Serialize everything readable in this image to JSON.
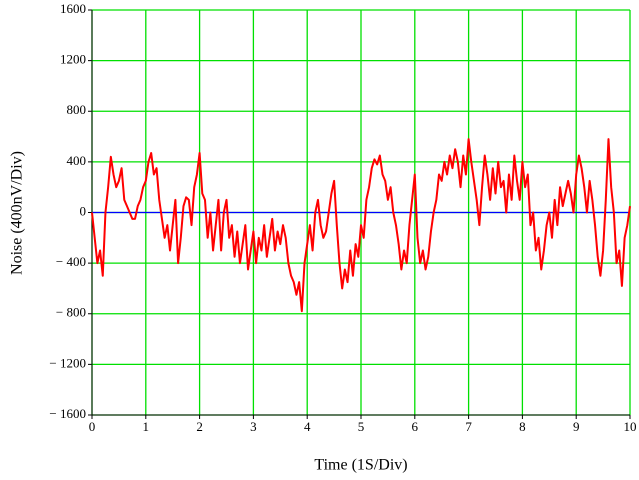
{
  "chart_data": {
    "type": "line",
    "xlabel": "Time (1S/Div)",
    "ylabel": "Noise (400nV/Div)",
    "xlim": [
      0,
      10
    ],
    "xticks": [
      0,
      1,
      2,
      3,
      4,
      5,
      6,
      7,
      8,
      9,
      10
    ],
    "ylim": [
      -1600,
      1600
    ],
    "yticks": [
      {
        "value": -1600,
        "label": "− 1600"
      },
      {
        "value": -1200,
        "label": "− 1200"
      },
      {
        "value": -800,
        "label": "− 800"
      },
      {
        "value": -400,
        "label": "− 400"
      },
      0,
      400,
      800,
      1200,
      1600
    ],
    "grid": true,
    "grid_color": "#00e000",
    "hline": {
      "value": 0,
      "color": "#0000ff"
    },
    "x": [
      0,
      0.05,
      0.1,
      0.15,
      0.2,
      0.25,
      0.3,
      0.35,
      0.4,
      0.45,
      0.5,
      0.55,
      0.6,
      0.65,
      0.7,
      0.75,
      0.8,
      0.85,
      0.9,
      0.95,
      1,
      1.05,
      1.1,
      1.15,
      1.2,
      1.25,
      1.3,
      1.35,
      1.4,
      1.45,
      1.5,
      1.55,
      1.6,
      1.65,
      1.7,
      1.75,
      1.8,
      1.85,
      1.9,
      1.95,
      2,
      2.05,
      2.1,
      2.15,
      2.2,
      2.25,
      2.3,
      2.35,
      2.4,
      2.45,
      2.5,
      2.55,
      2.6,
      2.65,
      2.7,
      2.75,
      2.8,
      2.85,
      2.9,
      2.95,
      3,
      3.05,
      3.1,
      3.15,
      3.2,
      3.25,
      3.3,
      3.35,
      3.4,
      3.45,
      3.5,
      3.55,
      3.6,
      3.65,
      3.7,
      3.75,
      3.8,
      3.85,
      3.9,
      3.95,
      4,
      4.05,
      4.1,
      4.15,
      4.2,
      4.25,
      4.3,
      4.35,
      4.4,
      4.45,
      4.5,
      4.55,
      4.6,
      4.65,
      4.7,
      4.75,
      4.8,
      4.85,
      4.9,
      4.95,
      5,
      5.05,
      5.1,
      5.15,
      5.2,
      5.25,
      5.3,
      5.35,
      5.4,
      5.45,
      5.5,
      5.55,
      5.6,
      5.65,
      5.7,
      5.75,
      5.8,
      5.85,
      5.9,
      5.95,
      6,
      6.05,
      6.1,
      6.15,
      6.2,
      6.25,
      6.3,
      6.35,
      6.4,
      6.45,
      6.5,
      6.55,
      6.6,
      6.65,
      6.7,
      6.75,
      6.8,
      6.85,
      6.9,
      6.95,
      7,
      7.05,
      7.1,
      7.15,
      7.2,
      7.25,
      7.3,
      7.35,
      7.4,
      7.45,
      7.5,
      7.55,
      7.6,
      7.65,
      7.7,
      7.75,
      7.8,
      7.85,
      7.9,
      7.95,
      8,
      8.05,
      8.1,
      8.15,
      8.2,
      8.25,
      8.3,
      8.35,
      8.4,
      8.45,
      8.5,
      8.55,
      8.6,
      8.65,
      8.7,
      8.75,
      8.8,
      8.85,
      8.9,
      8.95,
      9,
      9.05,
      9.1,
      9.15,
      9.2,
      9.25,
      9.3,
      9.35,
      9.4,
      9.45,
      9.5,
      9.55,
      9.6,
      9.65,
      9.7,
      9.75,
      9.8,
      9.85,
      9.9,
      9.95,
      10
    ],
    "series": [
      {
        "name": "Noise",
        "color": "#ff0000",
        "values": [
          0,
          -200,
          -400,
          -300,
          -500,
          0,
          200,
          440,
          300,
          200,
          250,
          350,
          100,
          50,
          0,
          -50,
          -50,
          50,
          100,
          200,
          250,
          400,
          470,
          300,
          350,
          100,
          -50,
          -200,
          -100,
          -300,
          -100,
          100,
          -400,
          -200,
          50,
          120,
          100,
          -100,
          200,
          300,
          470,
          150,
          100,
          -200,
          0,
          -300,
          -100,
          100,
          -300,
          0,
          100,
          -200,
          -100,
          -350,
          -150,
          -400,
          -250,
          -100,
          -450,
          -300,
          -150,
          -400,
          -200,
          -300,
          -100,
          -350,
          -200,
          -50,
          -300,
          -150,
          -250,
          -100,
          -200,
          -400,
          -500,
          -550,
          -650,
          -550,
          -780,
          -400,
          -250,
          -100,
          -300,
          0,
          100,
          -100,
          -200,
          -150,
          0,
          150,
          250,
          -100,
          -400,
          -600,
          -450,
          -550,
          -300,
          -500,
          -250,
          -350,
          -100,
          -200,
          100,
          200,
          350,
          420,
          380,
          450,
          300,
          250,
          100,
          200,
          0,
          -100,
          -250,
          -450,
          -300,
          -400,
          -100,
          100,
          300,
          -200,
          -400,
          -300,
          -450,
          -350,
          -150,
          0,
          100,
          300,
          250,
          400,
          300,
          450,
          350,
          500,
          400,
          200,
          450,
          300,
          580,
          400,
          250,
          100,
          -100,
          200,
          450,
          300,
          100,
          350,
          150,
          400,
          200,
          250,
          0,
          300,
          100,
          450,
          250,
          100,
          400,
          200,
          300,
          -100,
          0,
          -300,
          -200,
          -450,
          -300,
          -100,
          0,
          -200,
          100,
          -100,
          200,
          50,
          150,
          250,
          150,
          0,
          300,
          450,
          350,
          200,
          0,
          250,
          100,
          -100,
          -350,
          -500,
          -300,
          100,
          580,
          200,
          0,
          -400,
          -300,
          -580,
          -200,
          -100,
          50
        ]
      }
    ]
  }
}
